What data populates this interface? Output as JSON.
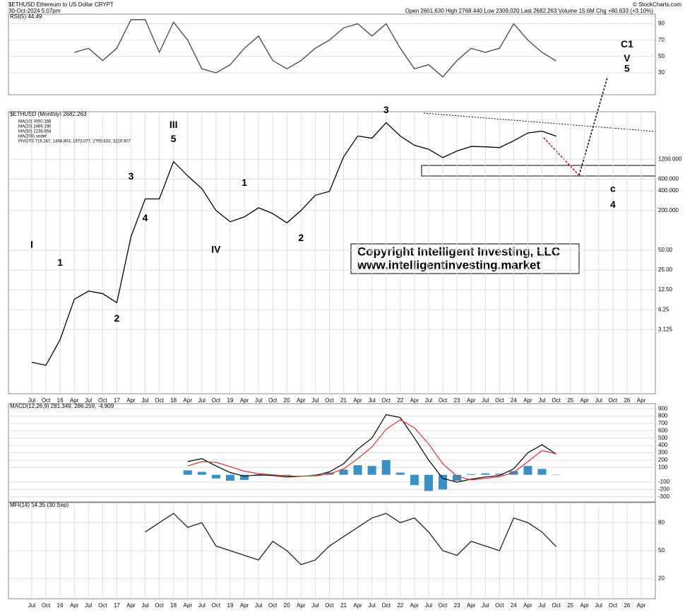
{
  "header": {
    "symbol": "$ETHUSD Ethereum to US Dollar CRYPT",
    "date": "30-Oct-2024 5:07pm",
    "quote": "Open 2601.630 High 2768.440 Low 2309.020 Last 2682.263 Volume 15.6M Chg +80.633 (+3.10%)",
    "source": "© StockCharts.com"
  },
  "copyright": [
    "Copyright Intelligent Investing, LLC",
    "www.intelligentinvesting.market"
  ],
  "chart_data": [
    {
      "type": "line",
      "title": "RSI(5) 44.49",
      "color": "#444",
      "ylim": [
        5,
        100
      ],
      "yticks": [
        30,
        50,
        70,
        90
      ],
      "values": [
        null,
        null,
        null,
        55,
        60,
        45,
        60,
        95,
        95,
        55,
        92,
        70,
        35,
        30,
        40,
        60,
        75,
        45,
        35,
        45,
        60,
        70,
        85,
        90,
        75,
        90,
        60,
        35,
        40,
        25,
        45,
        60,
        55,
        60,
        90,
        70,
        55,
        44.49,
        null,
        null,
        null,
        null,
        null,
        null
      ]
    },
    {
      "type": "line",
      "title": "$ETHUSD (Monthly) 2682.263",
      "log_scale": true,
      "color": "#000",
      "legend": [
        "MA(10) 3050.166",
        "MA(20) 2466.190",
        "MA(50) 2236.954",
        "MA(200) undef",
        "PIVOTS 716.247, 1498.803, 1973.077, 2755.633, 3229.907"
      ],
      "legend_colors": [
        "#e020e0",
        "#2a8a2a",
        "#1a1a8a",
        "#d00000",
        "#9030c0"
      ],
      "categories": [
        "Jul",
        "Oct",
        "16",
        "Apr",
        "Jul",
        "Oct",
        "17",
        "Apr",
        "Jul",
        "Oct",
        "18",
        "Apr",
        "Jul",
        "Oct",
        "19",
        "Apr",
        "Jul",
        "Oct",
        "20",
        "Apr",
        "Jul",
        "Oct",
        "21",
        "Apr",
        "Jul",
        "Oct",
        "22",
        "Apr",
        "Jul",
        "Oct",
        "23",
        "Apr",
        "Jul",
        "Oct",
        "24",
        "Apr",
        "Jul",
        "Oct",
        "25",
        "Apr",
        "Jul",
        "Oct",
        "26",
        "Apr"
      ],
      "values": [
        1.0,
        0.9,
        2.2,
        9,
        12,
        11,
        8,
        80,
        300,
        300,
        1100,
        670,
        430,
        200,
        135,
        160,
        220,
        180,
        130,
        200,
        340,
        390,
        1300,
        2700,
        2500,
        4300,
        2700,
        1950,
        1700,
        1270,
        1600,
        1870,
        1850,
        1800,
        2280,
        3000,
        3200,
        2682.263,
        null,
        null,
        null,
        null,
        null,
        null
      ],
      "ylim": [
        0.35,
        6000
      ],
      "yticks": [
        {
          "value": 3.125,
          "label": "3.125"
        },
        {
          "value": 6.25,
          "label": "6.25"
        },
        {
          "value": 12.5,
          "label": "12.50"
        },
        {
          "value": 25,
          "label": "25.00"
        },
        {
          "value": 50,
          "label": "50.00"
        },
        {
          "value": 200,
          "label": "200.000"
        },
        {
          "value": 400,
          "label": "400.000"
        },
        {
          "value": 600,
          "label": "600.000"
        },
        {
          "value": 1200,
          "label": "1200.000"
        }
      ],
      "annotations": [
        {
          "text": "I",
          "x": 0,
          "y": 60,
          "color": "#1010d0"
        },
        {
          "text": "1",
          "x": 2,
          "y": 32,
          "color": "#000"
        },
        {
          "text": "2",
          "x": 6,
          "y": 4.5,
          "color": "#000"
        },
        {
          "text": "3",
          "x": 7,
          "y": 650,
          "color": "#000"
        },
        {
          "text": "4",
          "x": 8,
          "y": 150,
          "color": "#000"
        },
        {
          "text": "III",
          "x": 10,
          "y": 3900,
          "color": "#1010d0"
        },
        {
          "text": "5",
          "x": 10,
          "y": 2400,
          "color": "#000"
        },
        {
          "text": "IV",
          "x": 13,
          "y": 50,
          "color": "#1010d0"
        },
        {
          "text": "1",
          "x": 15,
          "y": 520,
          "color": "#000"
        },
        {
          "text": "2",
          "x": 19,
          "y": 75,
          "color": "#000"
        },
        {
          "text": "3",
          "x": 25,
          "y": 6600,
          "color": "#000"
        },
        {
          "text": "4",
          "x": 41,
          "y": 240,
          "color": "#000"
        },
        {
          "text": "c",
          "x": 41,
          "y": 420,
          "color": "#d00000"
        },
        {
          "text": "C1",
          "x": 42,
          "y": 65000,
          "color": "#e020e0"
        },
        {
          "text": "V",
          "x": 42,
          "y": 40000,
          "color": "#1010d0"
        },
        {
          "text": "5",
          "x": 42,
          "y": 28000,
          "color": "#000"
        }
      ]
    },
    {
      "type": "macd",
      "title": "MACD(12,26,9) 281.349, 286.259, -4.909",
      "ylim": [
        -350,
        950
      ],
      "yticks": [
        -300,
        -200,
        -100,
        100,
        200,
        300,
        400,
        500,
        600,
        700,
        800,
        900
      ],
      "series": [
        {
          "color": "#000",
          "values": [
            null,
            null,
            null,
            null,
            null,
            null,
            null,
            null,
            null,
            null,
            null,
            180,
            220,
            120,
            30,
            -20,
            0,
            -10,
            -30,
            -20,
            -10,
            40,
            150,
            350,
            500,
            820,
            780,
            500,
            200,
            -50,
            -100,
            -60,
            -30,
            -10,
            80,
            300,
            410,
            281.349,
            null,
            null,
            null,
            null,
            null,
            null
          ]
        },
        {
          "color": "#e03030",
          "values": [
            null,
            null,
            null,
            null,
            null,
            null,
            null,
            null,
            null,
            null,
            null,
            120,
            180,
            170,
            110,
            50,
            15,
            0,
            -15,
            -20,
            -15,
            10,
            80,
            220,
            380,
            620,
            750,
            640,
            420,
            150,
            -20,
            -70,
            -50,
            -25,
            30,
            180,
            330,
            286.259,
            null,
            null,
            null,
            null,
            null,
            null
          ]
        }
      ],
      "histogram": {
        "color": "#3a8fc4",
        "values": [
          null,
          null,
          null,
          null,
          null,
          null,
          null,
          null,
          null,
          null,
          null,
          60,
          40,
          -50,
          -80,
          -70,
          -15,
          -10,
          -15,
          0,
          5,
          30,
          70,
          130,
          120,
          200,
          30,
          -140,
          -220,
          -200,
          -80,
          10,
          20,
          15,
          50,
          120,
          80,
          -4.909,
          null,
          null,
          null,
          null,
          null,
          null
        ]
      }
    },
    {
      "type": "line",
      "title": "MFI(14) 54.35 (30 Sep)",
      "color": "#222",
      "ylim": [
        0,
        100
      ],
      "yticks": [
        20,
        50,
        80
      ],
      "categories": [
        "Jul",
        "Oct",
        "16",
        "Apr",
        "Jul",
        "Oct",
        "17",
        "Apr",
        "Jul",
        "Oct",
        "18",
        "Apr",
        "Jul",
        "Oct",
        "19",
        "Apr",
        "Jul",
        "Oct",
        "20",
        "Apr",
        "Jul",
        "Oct",
        "21",
        "Apr",
        "Jul",
        "Oct",
        "22",
        "Apr",
        "Jul",
        "Oct",
        "23",
        "Apr",
        "Jul",
        "Oct",
        "24",
        "Apr",
        "Jul",
        "Oct",
        "25",
        "Apr",
        "Jul",
        "Oct",
        "26",
        "Apr"
      ],
      "values": [
        null,
        null,
        null,
        null,
        null,
        null,
        null,
        null,
        70,
        80,
        90,
        75,
        80,
        55,
        50,
        45,
        40,
        60,
        50,
        35,
        40,
        55,
        65,
        75,
        85,
        90,
        80,
        85,
        70,
        50,
        45,
        60,
        55,
        50,
        85,
        80,
        70,
        54.35,
        null,
        null,
        null,
        null,
        null,
        null
      ]
    }
  ]
}
